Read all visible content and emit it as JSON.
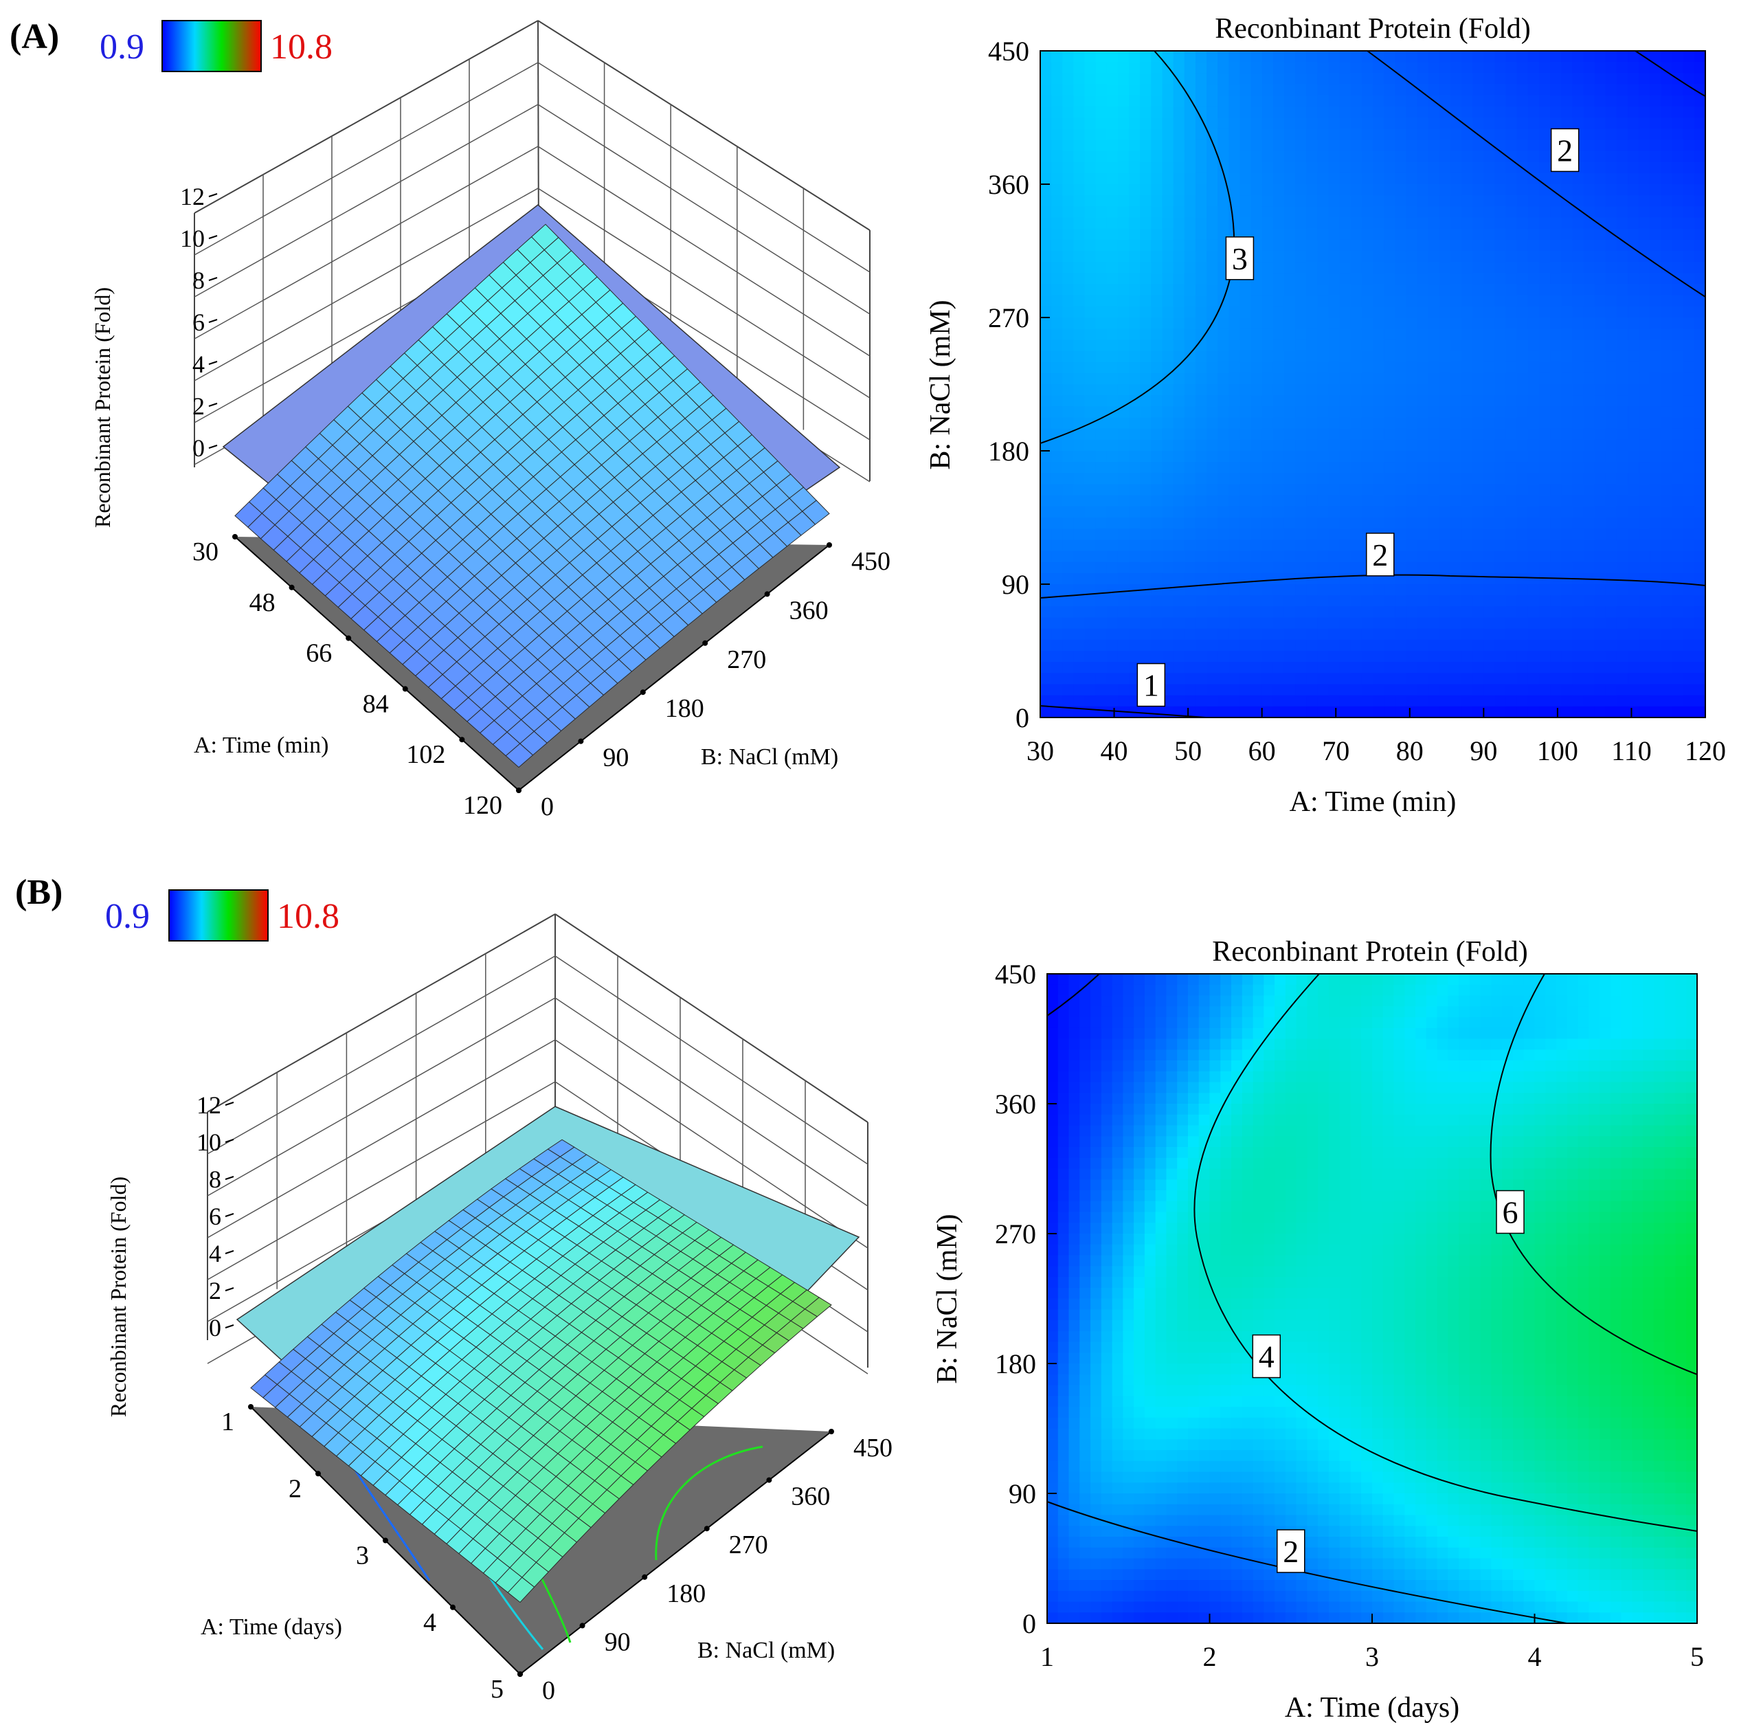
{
  "colors": {
    "low": "#0000ff",
    "mid1": "#00ffff",
    "mid2": "#00e000",
    "high": "#ff0000",
    "low_text": "#2020e0",
    "high_text": "#e01010",
    "floor": "#6b6b6b"
  },
  "chart_data": [
    {
      "panel_label": "(A)",
      "type": "surface3d",
      "colorbar": {
        "min": "0.9",
        "max": "10.8"
      },
      "zlabel": "Reconbinant Protein (Fold)",
      "xlabel": "A: Time (min)",
      "ylabel": "B: NaCl (mM)",
      "x_ticks": [
        "30",
        "48",
        "66",
        "84",
        "102",
        "120"
      ],
      "y_ticks": [
        "0",
        "90",
        "180",
        "270",
        "360",
        "450"
      ],
      "z_ticks": [
        "0",
        "2",
        "4",
        "6",
        "8",
        "10",
        "12"
      ],
      "xlim": [
        30,
        120
      ],
      "ylim": [
        0,
        450
      ],
      "zlim": [
        0,
        12
      ],
      "corner_values": {
        "xmin_ymin": 1.0,
        "xmax_ymin": 1.1,
        "xmin_ymax": 3.2,
        "xmax_ymax": 1.5,
        "peak": 3.4
      }
    },
    {
      "panel_label": "",
      "type": "contour",
      "title": "Reconbinant Protein (Fold)",
      "xlabel": "A: Time (min)",
      "ylabel": "B: NaCl (mM)",
      "x_ticks": [
        "30",
        "40",
        "50",
        "60",
        "70",
        "80",
        "90",
        "100",
        "110",
        "120"
      ],
      "y_ticks": [
        "0",
        "90",
        "180",
        "270",
        "360",
        "450"
      ],
      "xlim": [
        30,
        120
      ],
      "ylim": [
        0,
        450
      ],
      "contour_labels": [
        {
          "text": "1",
          "x": 45,
          "y": 22
        },
        {
          "text": "2",
          "x": 76,
          "y": 110
        },
        {
          "text": "3",
          "x": 57,
          "y": 310
        },
        {
          "text": "2",
          "x": 101,
          "y": 383
        }
      ]
    },
    {
      "panel_label": "(B)",
      "type": "surface3d",
      "colorbar": {
        "min": "0.9",
        "max": "10.8"
      },
      "zlabel": "Reconbinant Protein (Fold)",
      "xlabel": "A: Time (days)",
      "ylabel": "B: NaCl (mM)",
      "x_ticks": [
        "1",
        "2",
        "3",
        "4",
        "5"
      ],
      "y_ticks": [
        "0",
        "90",
        "180",
        "270",
        "360",
        "450"
      ],
      "z_ticks": [
        "0",
        "2",
        "4",
        "6",
        "8",
        "10",
        "12"
      ],
      "xlim": [
        1,
        5
      ],
      "ylim": [
        0,
        450
      ],
      "zlim": [
        0,
        12
      ],
      "corner_values": {
        "xmin_ymin": 1.0,
        "xmax_ymin": 3.8,
        "xmin_ymax": 1.3,
        "xmax_ymax": 6.7,
        "peak": 7.3
      }
    },
    {
      "panel_label": "",
      "type": "contour",
      "title": "Reconbinant Protein (Fold)",
      "xlabel": "A: Time (days)",
      "ylabel": "B: NaCl (mM)",
      "x_ticks": [
        "1",
        "2",
        "3",
        "4",
        "5"
      ],
      "y_ticks": [
        "0",
        "90",
        "180",
        "270",
        "360",
        "450"
      ],
      "xlim": [
        1,
        5
      ],
      "ylim": [
        0,
        450
      ],
      "contour_labels": [
        {
          "text": "2",
          "x": 2.5,
          "y": 50
        },
        {
          "text": "4",
          "x": 2.35,
          "y": 185
        },
        {
          "text": "6",
          "x": 3.85,
          "y": 285
        }
      ]
    }
  ]
}
